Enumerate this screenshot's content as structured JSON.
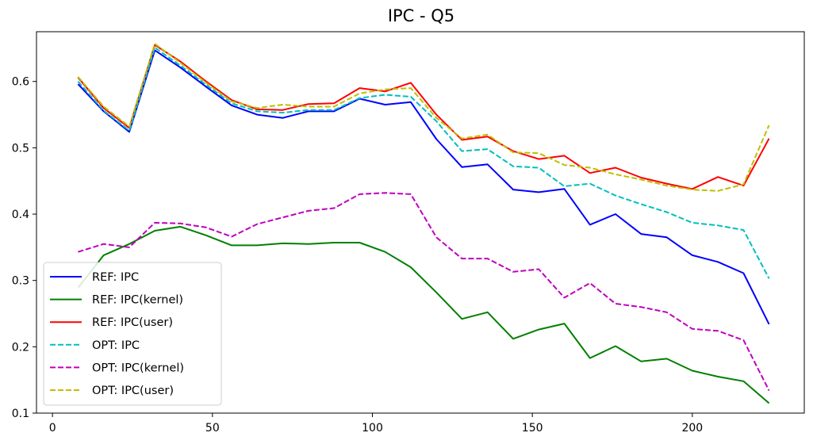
{
  "chart_data": {
    "type": "line",
    "title": "IPC - Q5",
    "xlabel": "",
    "ylabel": "",
    "xlim": [
      -5,
      235
    ],
    "ylim": [
      0.1,
      0.675
    ],
    "xticks": [
      0,
      50,
      100,
      150,
      200
    ],
    "yticks": [
      0.1,
      0.2,
      0.3,
      0.4,
      0.5,
      0.6
    ],
    "grid": false,
    "legend_position": "lower-left",
    "x": [
      8,
      16,
      24,
      32,
      40,
      48,
      56,
      64,
      72,
      80,
      88,
      96,
      104,
      112,
      120,
      128,
      136,
      144,
      152,
      160,
      168,
      176,
      184,
      192,
      200,
      208,
      216,
      224
    ],
    "series": [
      {
        "name": "REF: IPC",
        "color": "#0000ff",
        "dash": "solid",
        "values": [
          0.596,
          0.555,
          0.524,
          0.647,
          0.621,
          0.592,
          0.564,
          0.55,
          0.545,
          0.555,
          0.555,
          0.574,
          0.565,
          0.569,
          0.513,
          0.471,
          0.475,
          0.437,
          0.433,
          0.438,
          0.384,
          0.4,
          0.37,
          0.365,
          0.338,
          0.328,
          0.311,
          0.234
        ]
      },
      {
        "name": "REF: IPC(kernel)",
        "color": "#008000",
        "dash": "solid",
        "values": [
          0.289,
          0.338,
          0.355,
          0.375,
          0.381,
          0.368,
          0.353,
          0.353,
          0.356,
          0.355,
          0.357,
          0.357,
          0.343,
          0.32,
          0.282,
          0.242,
          0.252,
          0.212,
          0.226,
          0.235,
          0.183,
          0.201,
          0.178,
          0.182,
          0.164,
          0.155,
          0.148,
          0.115
        ]
      },
      {
        "name": "REF: IPC(user)",
        "color": "#ff0000",
        "dash": "solid",
        "values": [
          0.606,
          0.56,
          0.53,
          0.655,
          0.63,
          0.6,
          0.572,
          0.558,
          0.557,
          0.566,
          0.567,
          0.59,
          0.585,
          0.598,
          0.55,
          0.512,
          0.517,
          0.495,
          0.483,
          0.488,
          0.462,
          0.47,
          0.455,
          0.446,
          0.438,
          0.456,
          0.443,
          0.514
        ]
      },
      {
        "name": "OPT: IPC",
        "color": "#00bfbf",
        "dash": "dashed",
        "values": [
          0.6,
          0.556,
          0.526,
          0.651,
          0.624,
          0.595,
          0.567,
          0.555,
          0.553,
          0.557,
          0.557,
          0.575,
          0.58,
          0.577,
          0.54,
          0.495,
          0.498,
          0.472,
          0.47,
          0.442,
          0.446,
          0.428,
          0.415,
          0.403,
          0.387,
          0.383,
          0.376,
          0.303
        ]
      },
      {
        "name": "OPT: IPC(kernel)",
        "color": "#bf00bf",
        "dash": "dashed",
        "values": [
          0.343,
          0.355,
          0.35,
          0.387,
          0.386,
          0.38,
          0.366,
          0.385,
          0.395,
          0.405,
          0.409,
          0.43,
          0.432,
          0.43,
          0.365,
          0.333,
          0.333,
          0.313,
          0.317,
          0.274,
          0.296,
          0.265,
          0.26,
          0.252,
          0.227,
          0.224,
          0.21,
          0.134
        ]
      },
      {
        "name": "OPT: IPC(user)",
        "color": "#bfbf00",
        "dash": "dashed",
        "values": [
          0.607,
          0.562,
          0.532,
          0.657,
          0.628,
          0.598,
          0.57,
          0.56,
          0.565,
          0.562,
          0.562,
          0.582,
          0.588,
          0.59,
          0.545,
          0.514,
          0.52,
          0.493,
          0.492,
          0.474,
          0.47,
          0.46,
          0.452,
          0.443,
          0.437,
          0.435,
          0.445,
          0.534
        ]
      }
    ]
  }
}
